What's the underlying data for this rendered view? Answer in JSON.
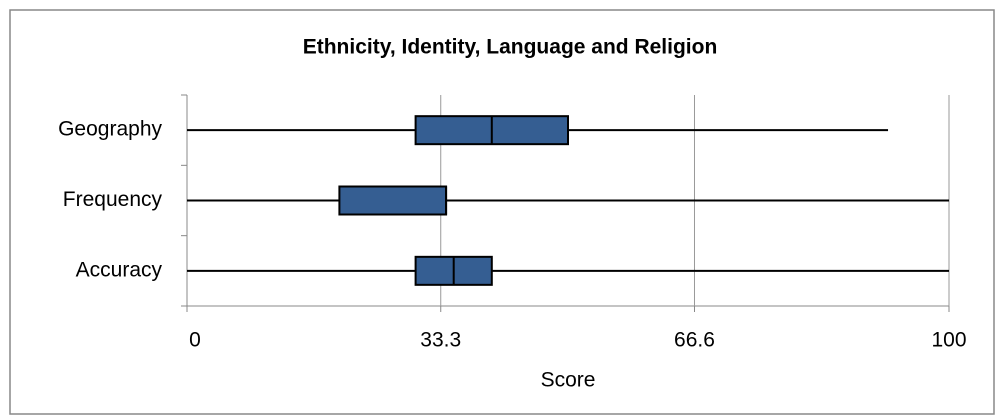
{
  "chart_data": {
    "type": "boxplot",
    "title": "Ethnicity, Identity, Language and Religion",
    "x_label": "Score",
    "categories": [
      "Geography",
      "Frequency",
      "Accuracy"
    ],
    "min": [
      0,
      0,
      0
    ],
    "q1": [
      30,
      20,
      30
    ],
    "median": [
      40,
      34,
      35
    ],
    "q3": [
      50,
      34,
      40
    ],
    "max": [
      92,
      100,
      100
    ],
    "color": "#355e92",
    "xlim": [
      0,
      100
    ],
    "xticks": [
      0,
      33.3,
      66.6,
      100
    ],
    "grid": true
  }
}
